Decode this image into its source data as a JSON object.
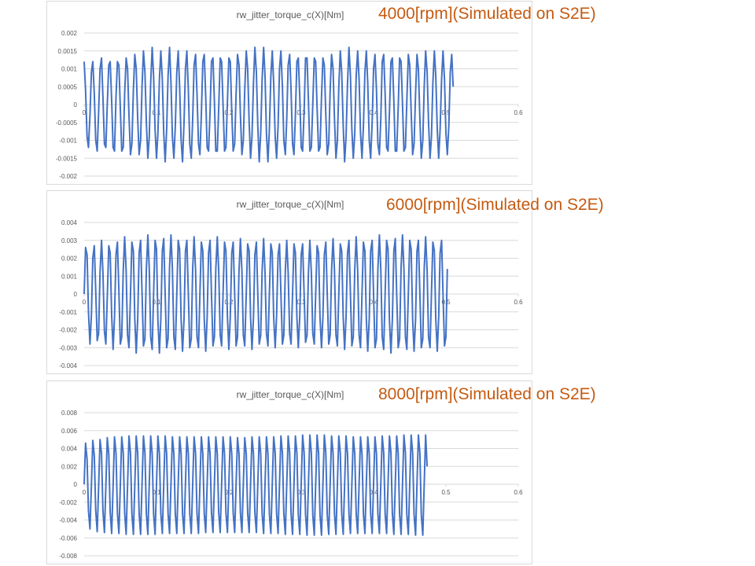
{
  "captions": [
    "4000[rpm](Simulated on S2E)",
    "6000[rpm](Simulated on S2E)",
    "8000[rpm](Simulated on S2E)"
  ],
  "colors": {
    "series": "#4472c4",
    "caption": "#c55a11",
    "grid": "#d9d9d9",
    "axis_text": "#595959",
    "title_text": "#595959"
  },
  "chart_data": [
    {
      "type": "line",
      "title": "rw_jitter_torque_c(X)[Nm]",
      "xlabel": "",
      "ylabel": "",
      "xlim": [
        0,
        0.6
      ],
      "ylim": [
        -0.002,
        0.002
      ],
      "x_ticks": [
        "0",
        "0.1",
        "0.2",
        "0.3",
        "0.4",
        "0.5",
        "0.6"
      ],
      "y_ticks": [
        "0.002",
        "0.0015",
        "0.001",
        "0.0005",
        "0",
        "-0.0005",
        "-0.001",
        "-0.0015",
        "-0.002"
      ],
      "grid": true,
      "legend": "none",
      "series": [
        {
          "x_start": 0,
          "x_step": 0.002,
          "y": [
            0.0012,
            0.0004,
            -0.0009,
            -0.0012,
            -0.0003,
            0.0009,
            0.0012,
            0.0003,
            -0.001,
            -0.0013,
            -0.0002,
            0.001,
            0.0013,
            0.0002,
            -0.0011,
            -0.0012,
            0.0,
            0.0011,
            0.0012,
            0.0001,
            -0.0012,
            -0.0013,
            0.0002,
            0.0012,
            0.0011,
            -0.0001,
            -0.0013,
            -0.0012,
            0.0003,
            0.0013,
            0.001,
            -0.0003,
            -0.0014,
            -0.0011,
            0.0004,
            0.0014,
            0.001,
            -0.0004,
            -0.0014,
            -0.001,
            0.0005,
            0.0015,
            0.0009,
            -0.0005,
            -0.0015,
            -0.0009,
            0.0006,
            0.0016,
            0.0008,
            -0.0007,
            -0.0015,
            -0.0008,
            0.0007,
            0.0015,
            0.0007,
            -0.0008,
            -0.0016,
            -0.0007,
            0.0008,
            0.0016,
            0.0006,
            -0.0009,
            -0.0015,
            -0.0006,
            0.0009,
            0.0015,
            0.0005,
            -0.001,
            -0.0016,
            -0.0005,
            0.001,
            0.0015,
            0.0004,
            -0.0011,
            -0.0015,
            -0.0004,
            0.0011,
            0.0014,
            0.0003,
            -0.0011,
            -0.0014,
            -0.0003,
            0.0012,
            0.0014,
            0.0002,
            -0.0012,
            -0.0013,
            -0.0002,
            0.0012,
            0.0013,
            0.0001,
            -0.0013,
            -0.0013,
            -0.0001,
            0.0013,
            0.0012,
            0.0,
            -0.0013,
            -0.0012,
            0.0001,
            0.0013,
            0.0012,
            -0.0002,
            -0.0013,
            -0.0011,
            0.0003,
            0.0014,
            0.0011,
            -0.0003,
            -0.0014,
            -0.001,
            0.0004,
            0.0015,
            0.001,
            -0.0005,
            -0.0015,
            -0.0009,
            0.0006,
            0.0016,
            0.0009,
            -0.0006,
            -0.0016,
            -0.0008,
            0.0007,
            0.0016,
            0.0008,
            -0.0008,
            -0.0016,
            -0.0007,
            0.0008,
            0.0015,
            0.0006,
            -0.0009,
            -0.0015,
            -0.0006,
            0.001,
            0.0015,
            0.0005,
            -0.001,
            -0.0014,
            -0.0004,
            0.0011,
            0.0014,
            0.0004,
            -0.0011,
            -0.0014,
            -0.0003,
            0.0012,
            0.0013,
            0.0002,
            -0.0012,
            -0.0013,
            -0.0002,
            0.0013,
            0.0013,
            0.0001,
            -0.0013,
            -0.0012,
            0.0,
            0.0013,
            0.0012,
            -0.0001,
            -0.0013,
            -0.0012,
            0.0002,
            0.0013,
            0.0011,
            -0.0003,
            -0.0014,
            -0.0011,
            0.0004,
            0.0014,
            0.001,
            -0.0004,
            -0.0015,
            -0.001,
            0.0005,
            0.0015,
            0.0009,
            -0.0006,
            -0.0016,
            -0.0009,
            0.0006,
            0.0016,
            0.0008,
            -0.0007,
            -0.0015,
            -0.0008,
            0.0008,
            0.0015,
            0.0007,
            -0.0008,
            -0.0015,
            -0.0006,
            0.0009,
            0.0015,
            0.0006,
            -0.001,
            -0.0015,
            -0.0005,
            0.001,
            0.0014,
            0.0004,
            -0.0011,
            -0.0014,
            -0.0004,
            0.0012,
            0.0014,
            0.0003,
            -0.0012,
            -0.0013,
            -0.0002,
            0.0012,
            0.0013,
            0.0001,
            -0.0013,
            -0.0013,
            -0.0001,
            0.0013,
            0.0012,
            0.0,
            -0.0013,
            -0.0012,
            0.0001,
            0.0014,
            0.0011,
            -0.0002,
            -0.0014,
            -0.0011,
            0.0003,
            0.0014,
            0.001,
            -0.0004,
            -0.0015,
            -0.001,
            0.0005,
            0.0015,
            0.0009,
            -0.0005,
            -0.0015,
            -0.0009,
            0.0006,
            0.0015,
            0.0008,
            -0.0007,
            -0.0015,
            -0.0007,
            0.0007,
            0.0015,
            0.0007,
            -0.0008,
            -0.0014,
            -0.0006,
            0.0009,
            0.0014,
            0.0005
          ]
        }
      ]
    },
    {
      "type": "line",
      "title": "rw_jitter_torque_c(X)[Nm]",
      "xlabel": "",
      "ylabel": "",
      "xlim": [
        0,
        0.6
      ],
      "ylim": [
        -0.004,
        0.004
      ],
      "x_ticks": [
        "0",
        "0.1",
        "0.2",
        "0.3",
        "0.4",
        "0.5",
        "0.6"
      ],
      "y_ticks": [
        "0.004",
        "0.003",
        "0.002",
        "0.001",
        "0",
        "-0.001",
        "-0.002",
        "-0.003",
        "-0.004"
      ],
      "grid": true,
      "legend": "none",
      "series": [
        {
          "x_start": 0,
          "x_step": 0.002,
          "y": [
            0.0,
            0.0026,
            0.0022,
            -0.001,
            -0.0028,
            -0.0012,
            0.002,
            0.0027,
            0.0002,
            -0.0026,
            -0.0022,
            0.0012,
            0.003,
            0.0012,
            -0.0021,
            -0.0028,
            -0.0002,
            0.0027,
            0.0023,
            -0.0012,
            -0.0031,
            -0.0013,
            0.0022,
            0.0029,
            0.0001,
            -0.0028,
            -0.0024,
            0.0013,
            0.0032,
            0.0013,
            -0.0023,
            -0.003,
            -0.0001,
            0.0029,
            0.0024,
            -0.0014,
            -0.0033,
            -0.0014,
            0.0023,
            0.003,
            0.0001,
            -0.0029,
            -0.0025,
            0.0014,
            0.0033,
            0.0014,
            -0.0024,
            -0.0031,
            0.0,
            0.003,
            0.0025,
            -0.0015,
            -0.0033,
            -0.0014,
            0.0024,
            0.0031,
            0.0,
            -0.003,
            -0.0025,
            0.0015,
            0.0033,
            0.0014,
            -0.0024,
            -0.0031,
            0.0,
            0.003,
            0.0025,
            -0.0014,
            -0.0032,
            -0.0014,
            0.0024,
            0.003,
            0.0,
            -0.003,
            -0.0025,
            0.0014,
            0.0032,
            0.0013,
            -0.0024,
            -0.003,
            0.0,
            0.0029,
            0.0024,
            -0.0014,
            -0.0032,
            -0.0013,
            0.0023,
            0.003,
            0.0,
            -0.0029,
            -0.0024,
            0.0014,
            0.0032,
            0.0013,
            -0.0023,
            -0.0029,
            0.0,
            0.0029,
            0.0024,
            -0.0013,
            -0.0031,
            -0.0013,
            0.0023,
            0.0029,
            0.0,
            -0.0029,
            -0.0024,
            0.0013,
            0.0031,
            0.0013,
            -0.0023,
            -0.0029,
            0.0,
            0.0028,
            0.0024,
            -0.0013,
            -0.0031,
            -0.0013,
            0.0022,
            0.0029,
            0.0,
            -0.0028,
            -0.0023,
            0.0013,
            0.0031,
            0.0012,
            -0.0022,
            -0.0029,
            0.0,
            0.0028,
            0.0023,
            -0.0013,
            -0.003,
            -0.0012,
            0.0022,
            0.0028,
            0.0,
            -0.0028,
            -0.0023,
            0.0013,
            0.003,
            0.0012,
            -0.0022,
            -0.0028,
            0.0,
            0.0028,
            0.0023,
            -0.0013,
            -0.003,
            -0.0012,
            0.0022,
            0.0028,
            0.0,
            -0.0027,
            -0.0023,
            0.0012,
            0.003,
            0.0012,
            -0.0022,
            -0.0028,
            0.0,
            0.0027,
            0.0023,
            -0.0013,
            -0.003,
            -0.0013,
            0.0022,
            0.0029,
            0.0,
            -0.0028,
            -0.0023,
            0.0013,
            0.0031,
            0.0013,
            -0.0023,
            -0.0029,
            0.0,
            0.0028,
            0.0024,
            -0.0013,
            -0.0031,
            -0.0013,
            0.0023,
            0.003,
            0.0,
            -0.0029,
            -0.0024,
            0.0014,
            0.0032,
            0.0013,
            -0.0023,
            -0.003,
            0.0,
            0.0029,
            0.0024,
            -0.0014,
            -0.0032,
            -0.0014,
            0.0024,
            0.003,
            0.0,
            -0.003,
            -0.0025,
            0.0014,
            0.0033,
            0.0014,
            -0.0024,
            -0.0031,
            0.0,
            0.003,
            0.0025,
            -0.0015,
            -0.0033,
            -0.0014,
            0.0024,
            0.0031,
            0.0,
            -0.003,
            -0.0025,
            0.0015,
            0.0033,
            0.0014,
            -0.0024,
            -0.0031,
            0.0,
            0.003,
            0.0025,
            -0.0014,
            -0.0032,
            -0.0014,
            0.0024,
            0.003,
            0.0,
            -0.003,
            -0.0025,
            0.0014,
            0.0032,
            0.0013,
            -0.0024,
            -0.003,
            0.0,
            0.0029,
            0.0024,
            -0.0014,
            -0.0032,
            -0.0013,
            0.0023,
            0.003,
            0.0,
            -0.0029,
            -0.0024,
            0.0014
          ]
        }
      ]
    },
    {
      "type": "line",
      "title": "rw_jitter_torque_c(X)[Nm]",
      "xlabel": "",
      "ylabel": "",
      "xlim": [
        0,
        0.6
      ],
      "ylim": [
        -0.008,
        0.008
      ],
      "x_ticks": [
        "0",
        "0.1",
        "0.2",
        "0.3",
        "0.4",
        "0.5",
        "0.6"
      ],
      "y_ticks": [
        "0.008",
        "0.006",
        "0.004",
        "0.002",
        "0",
        "-0.002",
        "-0.004",
        "-0.006",
        "-0.008"
      ],
      "grid": true,
      "legend": "none",
      "series": [
        {
          "x_start": 0,
          "x_step": 0.002,
          "y": [
            0.0,
            0.0046,
            0.0028,
            -0.003,
            -0.005,
            -0.0002,
            0.0049,
            0.0032,
            -0.0029,
            -0.0053,
            -0.0003,
            0.005,
            0.0034,
            -0.003,
            -0.0054,
            -0.0002,
            0.0052,
            0.0034,
            -0.0031,
            -0.0055,
            -0.0002,
            0.0053,
            0.0035,
            -0.0032,
            -0.0055,
            -0.0001,
            0.0053,
            0.0035,
            -0.0032,
            -0.0056,
            -0.0001,
            0.0054,
            0.0035,
            -0.0033,
            -0.0056,
            -0.0001,
            0.0054,
            0.0035,
            -0.0033,
            -0.0056,
            0.0,
            0.0054,
            0.0035,
            -0.0033,
            -0.0056,
            0.0,
            0.0054,
            0.0034,
            -0.0033,
            -0.0056,
            0.0,
            0.0054,
            0.0034,
            -0.0033,
            -0.0055,
            0.0,
            0.0054,
            0.0034,
            -0.0033,
            -0.0055,
            0.0,
            0.0053,
            0.0034,
            -0.0033,
            -0.0055,
            0.0,
            0.0053,
            0.0034,
            -0.0033,
            -0.0055,
            0.0,
            0.0053,
            0.0034,
            -0.0033,
            -0.0055,
            0.0,
            0.0053,
            0.0034,
            -0.0033,
            -0.0055,
            0.0,
            0.0053,
            0.0034,
            -0.0033,
            -0.0054,
            0.0,
            0.0053,
            0.0034,
            -0.0032,
            -0.0054,
            0.0,
            0.0053,
            0.0034,
            -0.0032,
            -0.0054,
            0.0,
            0.0053,
            0.0034,
            -0.0032,
            -0.0054,
            0.0,
            0.0053,
            0.0034,
            -0.0032,
            -0.0054,
            0.0,
            0.0052,
            0.0034,
            -0.0032,
            -0.0054,
            0.0,
            0.0052,
            0.0034,
            -0.0032,
            -0.0054,
            0.0,
            0.0053,
            0.0034,
            -0.0032,
            -0.0054,
            0.0,
            0.0053,
            0.0034,
            -0.0033,
            -0.0055,
            0.0,
            0.0053,
            0.0034,
            -0.0033,
            -0.0055,
            0.0,
            0.0053,
            0.0035,
            -0.0033,
            -0.0055,
            0.0,
            0.0054,
            0.0035,
            -0.0033,
            -0.0056,
            0.0,
            0.0054,
            0.0035,
            -0.0033,
            -0.0056,
            0.0,
            0.0054,
            0.0035,
            -0.0034,
            -0.0056,
            0.0,
            0.0055,
            0.0035,
            -0.0034,
            -0.0057,
            0.0,
            0.0055,
            0.0035,
            -0.0034,
            -0.0057,
            0.0,
            0.0055,
            0.0035,
            -0.0034,
            -0.0057,
            0.0,
            0.0055,
            0.0035,
            -0.0034,
            -0.0056,
            0.0,
            0.0054,
            0.0035,
            -0.0033,
            -0.0056,
            0.0,
            0.0054,
            0.0035,
            -0.0033,
            -0.0056,
            0.0,
            0.0054,
            0.0034,
            -0.0033,
            -0.0055,
            0.0,
            0.0053,
            0.0034,
            -0.0033,
            -0.0055,
            0.0,
            0.0053,
            0.0034,
            -0.0033,
            -0.0055,
            0.0,
            0.0053,
            0.0034,
            -0.0033,
            -0.0055,
            0.0,
            0.0053,
            0.0034,
            -0.0033,
            -0.0055,
            0.0,
            0.0054,
            0.0035,
            -0.0033,
            -0.0055,
            0.0,
            0.0054,
            0.0035,
            -0.0033,
            -0.0056,
            0.0,
            0.0054,
            0.0035,
            -0.0034,
            -0.0056,
            0.0,
            0.0055,
            0.0035,
            -0.0034,
            -0.0056,
            0.0,
            0.0055,
            0.0035,
            -0.0034,
            -0.0057,
            0.0,
            0.0055,
            0.0035,
            -0.0034,
            -0.0057,
            0.0,
            0.0055,
            0.002
          ]
        }
      ]
    }
  ]
}
